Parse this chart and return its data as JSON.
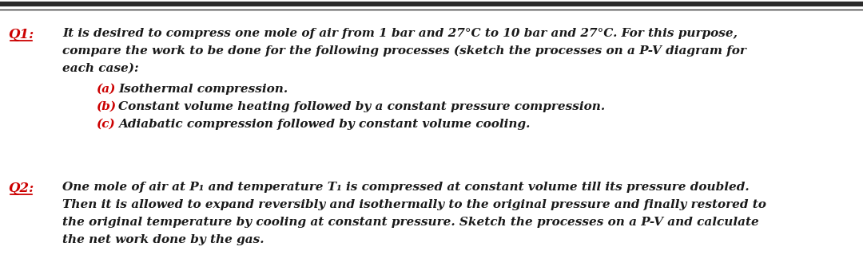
{
  "background_color": "#ffffff",
  "border_color": "#2a2a2a",
  "q1_label": "Q1:",
  "q1_label_color": "#cc0000",
  "q1_line1": "It is desired to compress one mole of air from 1 bar and 27°C to 10 bar and 27°C. For this purpose,",
  "q1_line2": "compare the work to be done for the following processes (sketch the processes on a P-V diagram for",
  "q1_line3": "each case):",
  "q1_a_label": "(a)",
  "q1_a_text": "Isothermal compression.",
  "q1_b_label": "(b)",
  "q1_b_text": "Constant volume heating followed by a constant pressure compression.",
  "q1_c_label": "(c)",
  "q1_c_text": "Adiabatic compression followed by constant volume cooling.",
  "q2_label": "Q2:",
  "q2_label_color": "#cc0000",
  "q2_line1": "One mole of air at P₁ and temperature T₁ is compressed at constant volume till its pressure doubled.",
  "q2_line2": "Then it is allowed to expand reversibly and isothermally to the original pressure and finally restored to",
  "q2_line3": "the original temperature by cooling at constant pressure. Sketch the processes on a P-V and calculate",
  "q2_line4": "the net work done by the gas.",
  "text_color": "#1a1a1a",
  "font_size_pts": 11.0,
  "label_font_size_pts": 12.0
}
